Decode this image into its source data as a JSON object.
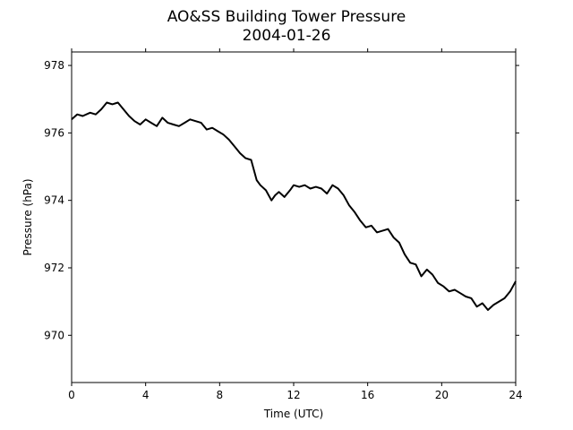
{
  "chart_data": {
    "type": "line",
    "title": "AO&SS Building Tower Pressure",
    "subtitle": "2004-01-26",
    "xlabel": "Time (UTC)",
    "ylabel": "Pressure (hPa)",
    "xlim": [
      0,
      24
    ],
    "ylim": [
      968.6,
      978.4
    ],
    "x_ticks": [
      0,
      4,
      8,
      12,
      16,
      20,
      24
    ],
    "y_ticks": [
      970,
      972,
      974,
      976,
      978
    ],
    "grid": false,
    "line_color": "#000000",
    "series": [
      {
        "x": [
          0,
          0.3,
          0.6,
          1.0,
          1.3,
          1.6,
          1.9,
          2.2,
          2.5,
          2.8,
          3.1,
          3.4,
          3.7,
          4.0,
          4.3,
          4.6,
          4.9,
          5.2,
          5.5,
          5.8,
          6.1,
          6.4,
          6.7,
          7.0,
          7.3,
          7.6,
          7.9,
          8.2,
          8.5,
          8.8,
          9.1,
          9.4,
          9.7,
          10.0,
          10.2,
          10.5,
          10.8,
          11.0,
          11.2,
          11.5,
          11.8,
          12.0,
          12.3,
          12.6,
          12.9,
          13.2,
          13.5,
          13.8,
          14.1,
          14.4,
          14.7,
          15.0,
          15.3,
          15.6,
          15.9,
          16.2,
          16.5,
          16.8,
          17.1,
          17.4,
          17.7,
          18.0,
          18.3,
          18.6,
          18.9,
          19.2,
          19.5,
          19.8,
          20.1,
          20.4,
          20.7,
          21.0,
          21.3,
          21.6,
          21.9,
          22.2,
          22.5,
          22.8,
          23.1,
          23.4,
          23.7,
          24.0
        ],
        "values": [
          976.4,
          976.55,
          976.5,
          976.6,
          976.55,
          976.7,
          976.9,
          976.85,
          976.9,
          976.7,
          976.5,
          976.35,
          976.25,
          976.4,
          976.3,
          976.2,
          976.45,
          976.3,
          976.25,
          976.2,
          976.3,
          976.4,
          976.35,
          976.3,
          976.1,
          976.15,
          976.05,
          975.95,
          975.8,
          975.6,
          975.4,
          975.25,
          975.2,
          974.6,
          974.45,
          974.3,
          974.0,
          974.15,
          974.25,
          974.1,
          974.3,
          974.45,
          974.4,
          974.45,
          974.35,
          974.4,
          974.35,
          974.2,
          974.45,
          974.35,
          974.15,
          973.85,
          973.65,
          973.4,
          973.2,
          973.25,
          973.05,
          973.1,
          973.15,
          972.9,
          972.75,
          972.4,
          972.15,
          972.1,
          971.75,
          971.95,
          971.8,
          971.55,
          971.45,
          971.3,
          971.35,
          971.25,
          971.15,
          971.1,
          970.85,
          970.95,
          970.75,
          970.9,
          971.0,
          971.1,
          971.3,
          971.6
        ]
      }
    ]
  }
}
